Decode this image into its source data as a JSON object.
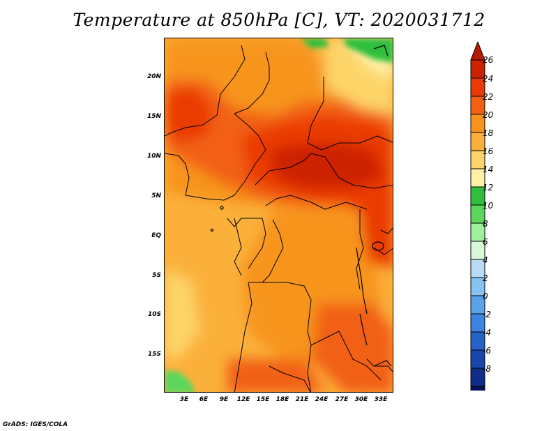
{
  "title": "Temperature at 850hPa [C], VT: 2020031712",
  "footer": "GrADS: IGES/COLA",
  "lat_labels": [
    "20N",
    "15N",
    "10N",
    "5N",
    "EQ",
    "5S",
    "10S",
    "15S"
  ],
  "lon_labels": [
    "3E",
    "6E",
    "9E",
    "12E",
    "15E",
    "18E",
    "21E",
    "24E",
    "27E",
    "30E",
    "33E"
  ],
  "colorbar": {
    "levels": [
      "26",
      "24",
      "22",
      "20",
      "18",
      "16",
      "14",
      "12",
      "10",
      "8",
      "6",
      "4",
      "2",
      "0",
      "-2",
      "-4",
      "-6",
      "-8"
    ],
    "colors": [
      "#cd2200",
      "#ea3a06",
      "#f26112",
      "#f7941d",
      "#fbb03b",
      "#fdd467",
      "#fef1a5",
      "#2fbf3d",
      "#5cd65c",
      "#9ef09e",
      "#d9f7d9",
      "#b8dcf5",
      "#87c3f0",
      "#5aa3e8",
      "#3b85e0",
      "#2563c9",
      "#1946aa",
      "#0e2d88",
      "#05125c"
    ],
    "over_color": "#b81a00",
    "under_color": "#e6e6fa"
  }
}
